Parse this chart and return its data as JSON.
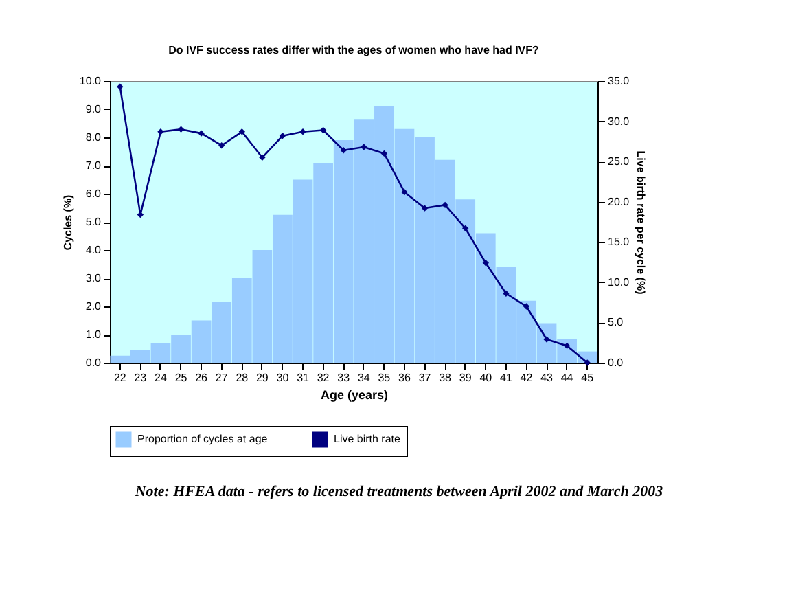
{
  "chart_data": {
    "type": "bar",
    "title": "Do IVF success rates differ with the ages of women who have had IVF?",
    "xlabel": "Age (years)",
    "ylabel": "Cycles (%)",
    "y2label": "Live birth rate per cycle (%)",
    "categories": [
      "22",
      "23",
      "24",
      "25",
      "26",
      "27",
      "28",
      "29",
      "30",
      "31",
      "32",
      "33",
      "34",
      "35",
      "36",
      "37",
      "38",
      "39",
      "40",
      "41",
      "42",
      "43",
      "44",
      "45"
    ],
    "series": [
      {
        "name": "Proportion of cycles at age",
        "color": "#99ccff",
        "values": [
          0.25,
          0.45,
          0.7,
          1.0,
          1.5,
          2.15,
          3.0,
          4.0,
          5.25,
          6.5,
          7.1,
          7.9,
          8.65,
          9.1,
          8.3,
          8.0,
          7.2,
          5.8,
          4.6,
          3.4,
          2.2,
          1.4,
          0.85,
          0.4
        ]
      },
      {
        "name": "Live birth rate",
        "type": "line",
        "axis": "y2",
        "color": "#000080",
        "marker": "diamond",
        "values": [
          34.3,
          18.4,
          28.7,
          29.0,
          28.5,
          27.0,
          28.7,
          25.5,
          28.2,
          28.7,
          28.9,
          26.4,
          26.8,
          26.0,
          21.2,
          19.2,
          19.6,
          16.7,
          12.4,
          8.6,
          7.0,
          2.9,
          2.1,
          0
        ]
      }
    ],
    "ylim": [
      0,
      10
    ],
    "yticks": [
      {
        "value": 0,
        "label": "0.0"
      },
      {
        "value": 1,
        "label": "1.0"
      },
      {
        "value": 2,
        "label": "2.0"
      },
      {
        "value": 3,
        "label": "3.0"
      },
      {
        "value": 4,
        "label": "4.0"
      },
      {
        "value": 5,
        "label": "5.0"
      },
      {
        "value": 6,
        "label": "6.0"
      },
      {
        "value": 7,
        "label": "7.0"
      },
      {
        "value": 8,
        "label": "8.0"
      },
      {
        "value": 9,
        "label": "9.0"
      },
      {
        "value": 10,
        "label": "10.0"
      }
    ],
    "y2lim": [
      0,
      35
    ],
    "y2ticks": [
      {
        "value": 0,
        "label": "0.0"
      },
      {
        "value": 5,
        "label": "5.0"
      },
      {
        "value": 10,
        "label": "10.0"
      },
      {
        "value": 15,
        "label": "15.0"
      },
      {
        "value": 20,
        "label": "20.0"
      },
      {
        "value": 25,
        "label": "25.0"
      },
      {
        "value": 30,
        "label": "30.0"
      },
      {
        "value": 35,
        "label": "35.0"
      }
    ],
    "legend": "bottom",
    "grid": false,
    "annotations": [
      "Note: HFEA data - refers to licensed treatments between April 2002 and March 2003"
    ]
  }
}
